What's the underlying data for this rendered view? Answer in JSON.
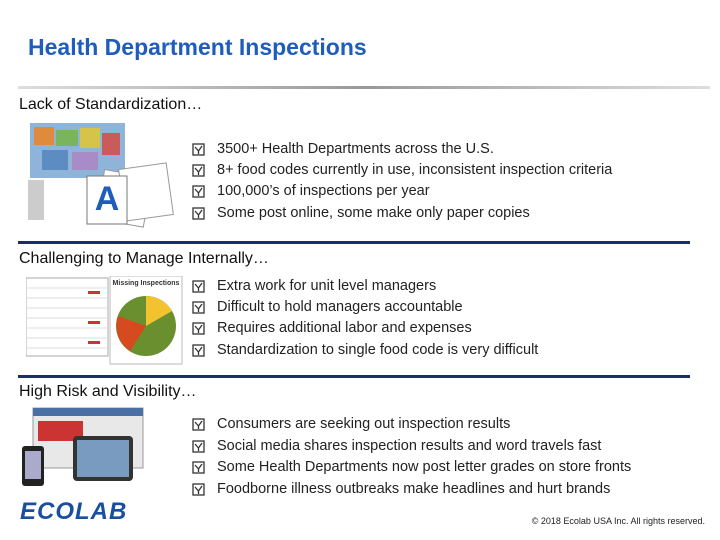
{
  "header": {
    "title": "Health Department Inspections"
  },
  "sections": [
    {
      "heading": "Lack of Standardization…",
      "bullets": [
        "3500+ Health Departments across the U.S.",
        "8+ food codes currently in use, inconsistent inspection criteria",
        "100,000’s of inspections per year",
        "Some post online, some make only paper copies"
      ]
    },
    {
      "heading": "Challenging to Manage Internally…",
      "bullets": [
        "Extra work for unit level managers",
        "Difficult to hold managers accountable",
        "Requires additional labor and expenses",
        "Standardization to single food code is very difficult"
      ]
    },
    {
      "heading": "High Risk and Visibility…",
      "bullets": [
        "Consumers are seeking out inspection results",
        "Social media shares inspection results and word travels fast",
        "Some Health Departments now post letter grades on store fronts",
        "Foodborne illness outbreaks make headlines and hurt brands"
      ]
    }
  ],
  "images": {
    "chart_caption": "Missing Inspections"
  },
  "footer": {
    "logo": "ECOLAB",
    "copyright": "© 2018 Ecolab USA Inc. All rights reserved."
  }
}
